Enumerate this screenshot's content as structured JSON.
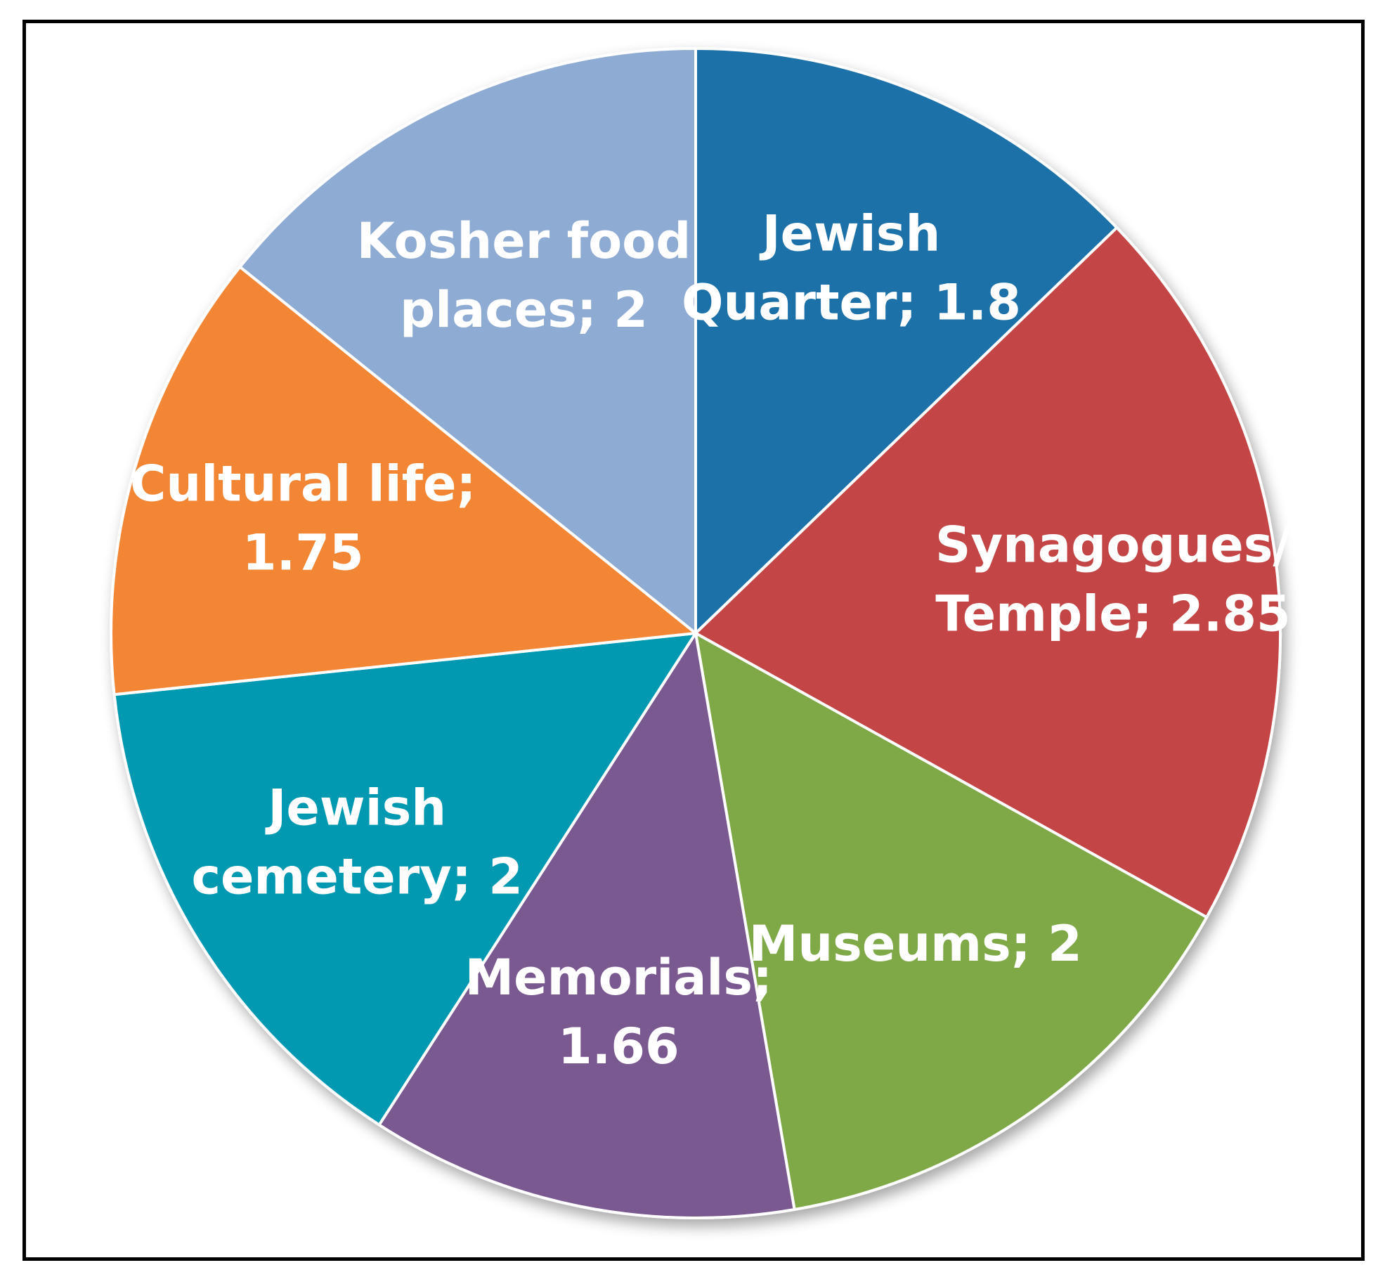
{
  "chart_data": {
    "type": "pie",
    "title": "",
    "start_angle_deg": 0,
    "direction": "clockwise",
    "slices": [
      {
        "label": "Jewish Quarter",
        "value": 1.8,
        "color": "#1f71a9",
        "label_lines": [
          "Jewish",
          "Quarter; 1.8"
        ]
      },
      {
        "label": "Synagogues/ Temple",
        "value": 2.85,
        "color": "#c44544",
        "label_lines": [
          "Synagogues/",
          "Temple; 2.85"
        ]
      },
      {
        "label": "Museums",
        "value": 2,
        "color": "#7fa846",
        "label_lines": [
          "Museums; 2"
        ]
      },
      {
        "label": "Memorials",
        "value": 1.66,
        "color": "#7a5890",
        "label_lines": [
          "Memorials;",
          "1.66"
        ]
      },
      {
        "label": "Jewish cemetery",
        "value": 2,
        "color": "#0399b1",
        "label_lines": [
          "Jewish",
          "cemetery; 2"
        ]
      },
      {
        "label": "Cultural life",
        "value": 1.75,
        "color": "#f28635",
        "label_lines": [
          "Cultural life;",
          "1.75"
        ]
      },
      {
        "label": "Kosher food places",
        "value": 2,
        "color": "#8eabd3",
        "label_lines": [
          "Kosher food",
          "places; 2"
        ]
      }
    ]
  }
}
